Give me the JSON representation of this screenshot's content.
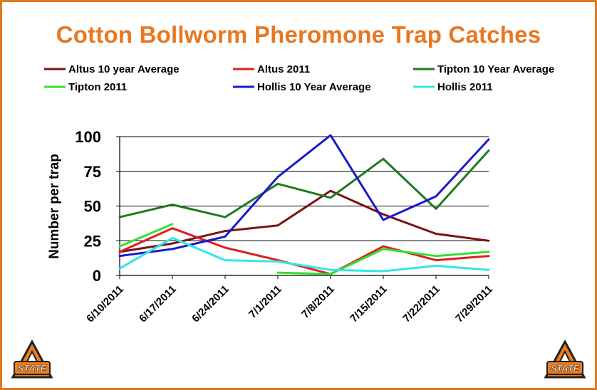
{
  "slide": {
    "title": "Cotton Bollworm Pheromone Trap Catches",
    "colors": {
      "title": "#e87722",
      "border": "#e07a1f"
    },
    "logos": [
      {
        "name": "osu-logo-left",
        "text": "STATE"
      },
      {
        "name": "osu-logo-right",
        "text": "STATE"
      }
    ]
  },
  "chart_data": {
    "type": "line",
    "title": "",
    "xlabel": "",
    "ylabel": "Number per trap",
    "ylim": [
      0,
      100
    ],
    "yticks": [
      0,
      25,
      50,
      75,
      100
    ],
    "grid": true,
    "legend": "top",
    "categories": [
      "6/10/2011",
      "6/17/2011",
      "6/24/2011",
      "7/1/2011",
      "7/8/2011",
      "7/15/2011",
      "7/22/2011",
      "7/29/2011"
    ],
    "series": [
      {
        "name": "Altus 10 year Average",
        "color": "#7b1414",
        "values": [
          17,
          23,
          32,
          36,
          61,
          44,
          30,
          25
        ]
      },
      {
        "name": "Altus 2011",
        "color": "#dd1f1f",
        "values": [
          17,
          34,
          20,
          11,
          1,
          21,
          11,
          14
        ]
      },
      {
        "name": "Tipton 10 Year Average",
        "color": "#1f7a1f",
        "values": [
          42,
          51,
          42,
          66,
          56,
          84,
          48,
          90
        ]
      },
      {
        "name": "Tipton 2011",
        "color": "#33e033",
        "values": [
          21,
          37,
          null,
          2,
          1,
          19,
          14,
          17
        ]
      },
      {
        "name": "Hollis 10 Year Average",
        "color": "#1a1acc",
        "values": [
          14,
          19,
          28,
          71,
          101,
          40,
          57,
          98
        ]
      },
      {
        "name": "Hollis 2011",
        "color": "#33e6e6",
        "values": [
          5,
          27,
          11,
          10,
          4,
          3,
          7,
          4
        ]
      }
    ]
  }
}
